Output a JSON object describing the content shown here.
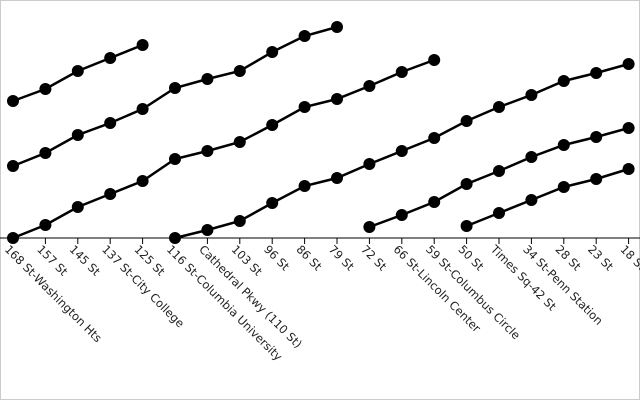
{
  "chart_data": {
    "type": "line",
    "color": "#000000",
    "categories": [
      "168 St-Washington Hts",
      "157 St",
      "145 St",
      "137 St-City College",
      "125 St",
      "116 St-Columbia University",
      "Cathedral Pkwy (110 St)",
      "103 St",
      "96 St",
      "86 St",
      "79 St",
      "72 St",
      "66 St-Lincoln Center",
      "59 St-Columbus Circle",
      "50 St",
      "Times Sq-42 St",
      "34 St-Penn Station",
      "28 St",
      "23 St",
      "18 St"
    ],
    "ylim": [
      0,
      238
    ],
    "series": [
      {
        "color": "#000000",
        "values": [
          137,
          149,
          167,
          180,
          193,
          null,
          null,
          null,
          null,
          null,
          null,
          null,
          null,
          null,
          null,
          null,
          null,
          null,
          null,
          null
        ]
      },
      {
        "color": "#000000",
        "values": [
          72,
          85,
          103,
          115,
          129,
          150,
          159,
          167,
          186,
          202,
          211,
          null,
          null,
          null,
          null,
          null,
          null,
          null,
          null,
          null
        ]
      },
      {
        "color": "#000000",
        "values": [
          0,
          13,
          31,
          44,
          57,
          79,
          87,
          96,
          113,
          131,
          139,
          152,
          166,
          178,
          null,
          null,
          null,
          null,
          null,
          null
        ]
      },
      {
        "color": "#000000",
        "values": [
          null,
          null,
          null,
          null,
          null,
          0,
          8,
          17,
          35,
          52,
          60,
          74,
          87,
          100,
          117,
          131,
          143,
          157,
          165,
          174
        ]
      },
      {
        "color": "#000000",
        "values": [
          null,
          null,
          null,
          null,
          null,
          null,
          null,
          null,
          null,
          null,
          null,
          11,
          23,
          36,
          54,
          67,
          81,
          93,
          101,
          110
        ]
      },
      {
        "color": "#000000",
        "values": [
          null,
          null,
          null,
          null,
          null,
          null,
          null,
          null,
          null,
          null,
          null,
          null,
          null,
          null,
          12,
          25,
          38,
          51,
          59,
          69
        ]
      }
    ]
  }
}
